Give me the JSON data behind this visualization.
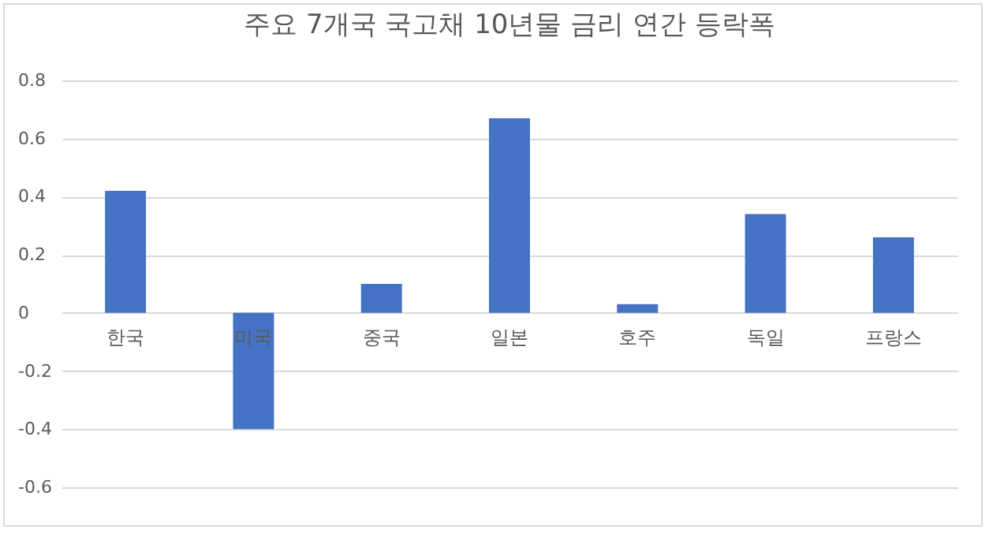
{
  "chart_data": {
    "type": "bar",
    "title": "주요 7개국 국고채 10년물 금리 연간 등락폭",
    "categories": [
      "한국",
      "미국",
      "중국",
      "일본",
      "호주",
      "독일",
      "프랑스"
    ],
    "values": [
      0.42,
      -0.4,
      0.1,
      0.67,
      0.03,
      0.34,
      0.26
    ],
    "color": "#4472c4",
    "ylim": [
      -0.6,
      0.8
    ],
    "yticks": [
      -0.6,
      -0.4,
      -0.2,
      0,
      0.2,
      0.4,
      0.6,
      0.8
    ],
    "grid": "y"
  }
}
